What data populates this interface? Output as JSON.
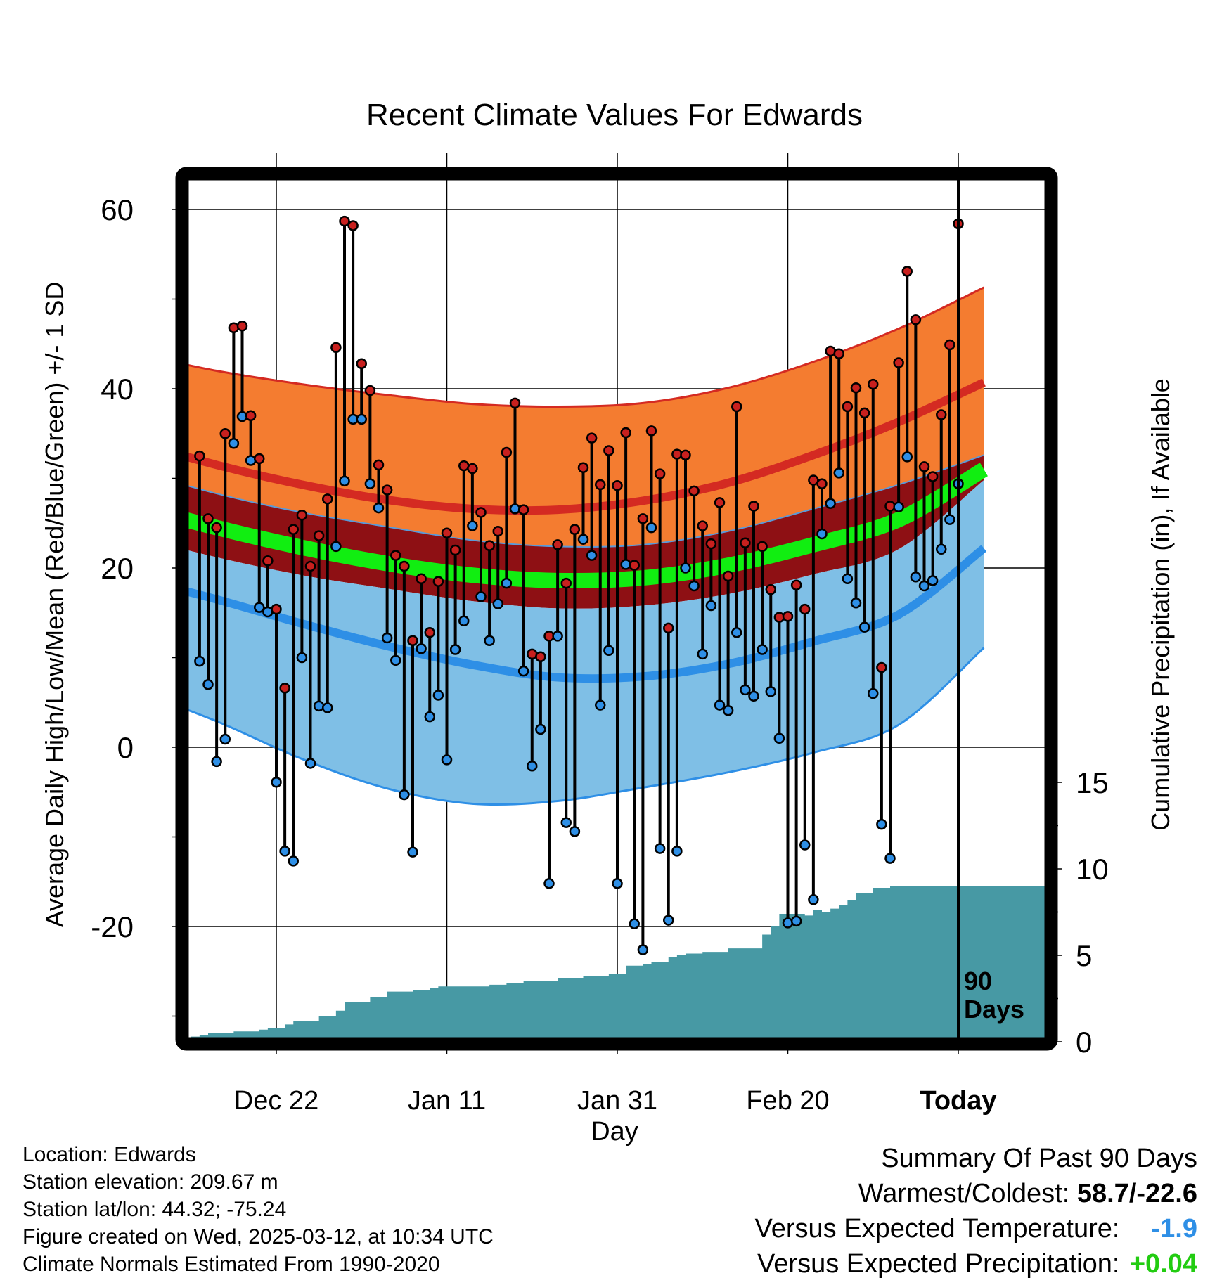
{
  "chart_data": {
    "type": "line",
    "title": "Recent Climate Values For Edwards",
    "xlabel": "Day",
    "ylabel": "Average Daily High/Low/Mean (Red/Blue/Green) +/- 1 SD",
    "y2label": "Cumulative Precipitation (in), If Available",
    "ylim": [
      -32,
      68
    ],
    "y_ticks": [
      -20,
      0,
      20,
      40,
      60
    ],
    "y2lim": [
      0,
      40
    ],
    "y2_ticks": [
      0,
      5,
      10,
      15
    ],
    "xlim": [
      -88,
      9
    ],
    "x_ticks": [
      {
        "day": -71,
        "label": "Dec 22"
      },
      {
        "day": -51,
        "label": "Jan 11"
      },
      {
        "day": -31,
        "label": "Jan 31"
      },
      {
        "day": -11,
        "label": "Feb 20"
      },
      {
        "day": 9,
        "label": "Today",
        "bold": true
      }
    ],
    "grid": true,
    "today_marker": {
      "day": 9,
      "label_line1": "90",
      "label_line2": "Days"
    },
    "normals": {
      "days": [
        -88,
        -78,
        -68,
        -58,
        -48,
        -38,
        -28,
        -18,
        -8,
        2,
        12
      ],
      "high_sd_upper": [
        44.0,
        42.0,
        40.5,
        39.3,
        38.3,
        38.0,
        38.4,
        40.1,
        43.0,
        46.7,
        51.3
      ],
      "high_mean": [
        34.2,
        31.5,
        29.3,
        27.6,
        26.6,
        26.5,
        27.5,
        29.5,
        32.6,
        36.3,
        40.7
      ],
      "high_sd_lower": [
        31.0,
        28.3,
        26.2,
        24.6,
        23.1,
        22.4,
        22.6,
        24.1,
        26.6,
        29.3,
        32.6
      ],
      "mean": [
        27.0,
        24.5,
        22.3,
        20.5,
        19.2,
        18.6,
        18.9,
        20.3,
        22.6,
        25.4,
        31.0
      ],
      "low_sd_upper": [
        23.6,
        21.2,
        19.2,
        17.7,
        16.3,
        15.5,
        15.8,
        17.1,
        19.3,
        22.1,
        29.8
      ],
      "low_mean": [
        19.0,
        16.5,
        13.8,
        11.3,
        9.2,
        7.8,
        7.9,
        9.3,
        11.8,
        14.8,
        22.2
      ],
      "low_sd_lower": [
        6.5,
        2.9,
        -1.3,
        -4.6,
        -6.3,
        -6.0,
        -4.5,
        -2.8,
        -0.6,
        2.5,
        11.1
      ]
    },
    "series": [
      {
        "name": "High",
        "color": "#c8201e",
        "values": [
          32.5,
          25.5,
          24.5,
          35.0,
          46.8,
          47.0,
          37.0,
          32.2,
          20.8,
          15.4,
          6.6,
          24.3,
          25.9,
          20.2,
          23.6,
          27.7,
          44.6,
          58.7,
          58.2,
          42.8,
          39.8,
          31.5,
          28.7,
          21.4,
          20.2,
          11.9,
          18.8,
          12.8,
          18.5,
          23.9,
          22.0,
          31.4,
          31.1,
          26.2,
          22.5,
          24.1,
          32.9,
          38.4,
          26.5,
          10.4,
          10.1,
          12.4,
          22.6,
          18.3,
          24.3,
          31.2,
          34.5,
          29.3,
          33.1,
          29.2,
          35.1,
          20.3,
          25.5,
          35.3,
          30.5,
          13.3,
          32.7,
          32.6,
          28.6,
          24.7,
          22.7,
          27.3,
          19.1,
          38.0,
          22.8,
          26.9,
          22.4,
          17.6,
          14.5,
          14.6,
          18.1,
          15.4,
          29.8,
          29.4,
          44.2,
          43.9,
          38.0,
          40.1,
          37.3,
          40.5,
          8.9,
          26.9,
          42.9,
          53.1,
          47.7,
          31.3,
          30.2,
          37.1,
          44.9,
          58.4
        ]
      },
      {
        "name": "Low",
        "color": "#2e8fe6",
        "values": [
          9.6,
          7.0,
          -1.6,
          0.9,
          33.9,
          36.9,
          32.0,
          15.6,
          15.1,
          -3.9,
          -11.6,
          -12.7,
          10.0,
          -1.8,
          4.6,
          4.4,
          22.4,
          29.7,
          36.6,
          36.6,
          29.4,
          26.7,
          12.2,
          9.7,
          -5.3,
          -11.7,
          11.0,
          3.4,
          5.8,
          -1.4,
          10.9,
          14.1,
          24.7,
          16.8,
          11.9,
          16.0,
          18.3,
          26.6,
          8.5,
          -2.1,
          2.0,
          -15.2,
          12.4,
          -8.4,
          -9.4,
          23.2,
          21.4,
          4.7,
          10.8,
          -15.2,
          20.4,
          -19.7,
          -22.6,
          24.5,
          -11.3,
          -19.3,
          -11.6,
          20.0,
          18.0,
          10.4,
          15.8,
          4.7,
          4.1,
          12.8,
          6.4,
          5.7,
          10.9,
          6.2,
          1.0,
          -19.6,
          -19.4,
          -10.9,
          -17.0,
          23.8,
          27.2,
          30.6,
          18.8,
          16.1,
          13.4,
          6.0,
          -8.6,
          -12.4,
          26.8,
          32.4,
          19.0,
          18.0,
          18.6,
          22.1,
          25.4,
          29.4
        ]
      },
      {
        "name": "Cumulative Precipitation",
        "color": "#4799a4",
        "days": [
          -88,
          -84,
          -83,
          -81,
          -80,
          -79,
          -76,
          -73,
          -72,
          -70,
          -69,
          -67,
          -66,
          -64,
          -63,
          -61,
          -60,
          -58,
          -56,
          -55,
          -53,
          -52,
          -50,
          -48,
          -46,
          -44,
          -42,
          -40,
          -38,
          -36,
          -35,
          -33,
          -32,
          -30,
          -28,
          -27,
          -25,
          -24,
          -23,
          -21,
          -20,
          -18,
          -17,
          -14,
          -13,
          -12,
          -11,
          -9,
          -8,
          -7,
          -6,
          -5,
          -4,
          -3,
          -2,
          -1,
          1,
          3,
          9
        ],
        "values": [
          0.0,
          0.0,
          0.1,
          0.3,
          0.4,
          0.5,
          0.6,
          0.7,
          0.8,
          1.0,
          1.2,
          1.2,
          1.5,
          1.8,
          2.3,
          2.3,
          2.6,
          2.9,
          2.9,
          3.0,
          3.1,
          3.2,
          3.2,
          3.2,
          3.3,
          3.4,
          3.5,
          3.5,
          3.7,
          3.7,
          3.8,
          3.8,
          3.9,
          4.4,
          4.5,
          4.6,
          4.9,
          5.0,
          5.1,
          5.2,
          5.2,
          5.4,
          5.4,
          6.2,
          6.7,
          7.4,
          7.4,
          7.3,
          7.6,
          7.5,
          7.7,
          7.9,
          8.2,
          8.6,
          8.6,
          8.9,
          9.0,
          9.0,
          9.0
        ]
      }
    ]
  },
  "footer_left": {
    "location": "Location: Edwards",
    "elevation": "Station elevation: 209.67 m",
    "latlon": "Station lat/lon: 44.32; -75.24",
    "created": "Figure created on Wed, 2025-03-12, at 10:34 UTC",
    "normals": "Climate Normals Estimated From 1990-2020"
  },
  "footer_right": {
    "heading": "Summary Of Past 90 Days",
    "warm_cold_label": "Warmest/Coldest:",
    "warm_cold_value": "58.7/-22.6",
    "temp_label": "Versus Expected Temperature:",
    "temp_value": "-1.9",
    "temp_color": "#2e8fe6",
    "precip_label": "Versus Expected Precipitation:",
    "precip_value": "+0.04",
    "precip_color": "#22cc11"
  },
  "colors": {
    "high_band": "#f47c30",
    "high_mean_line": "#d42a22",
    "mean_band": "#8e1014",
    "mean_line": "#11ee11",
    "low_band": "#7fbfe6",
    "low_mean_line": "#2e8fe6",
    "precip_fill": "#4799a4"
  }
}
